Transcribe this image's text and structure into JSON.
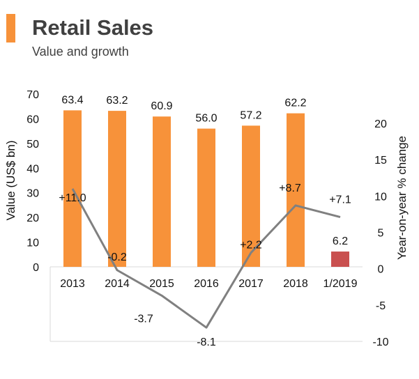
{
  "header": {
    "title": "Retail Sales",
    "subtitle": "Value and growth"
  },
  "colors": {
    "accent": "#f7923a",
    "bar": "#f7923a",
    "bar_highlight": "#c9504f",
    "line": "#808080",
    "grid": "#d9d9d9"
  },
  "chart_data": {
    "type": "bar",
    "categories": [
      "2013",
      "2014",
      "2015",
      "2016",
      "2017",
      "2018",
      "1/2019"
    ],
    "series": [
      {
        "name": "Value (US$ bn)",
        "type": "bar",
        "axis": "left",
        "values": [
          63.4,
          63.2,
          60.9,
          56.0,
          57.2,
          62.2,
          6.2
        ],
        "labels": [
          "63.4",
          "63.2",
          "60.9",
          "56.0",
          "57.2",
          "62.2",
          "6.2"
        ]
      },
      {
        "name": "Year-on-year % change",
        "type": "line",
        "axis": "right",
        "values": [
          11.0,
          -0.2,
          -3.7,
          -8.1,
          2.2,
          8.7,
          7.1
        ],
        "labels": [
          "+11.0",
          "-0.2",
          "-3.7",
          "-8.1",
          "+2.2",
          "+8.7",
          "+7.1"
        ]
      }
    ],
    "ylabel": "Value (US$ bn)",
    "ylabel_right": "Year-on-year % change",
    "ylim": [
      0,
      70
    ],
    "y_ticks": [
      "0",
      "10",
      "20",
      "30",
      "40",
      "50",
      "60",
      "70"
    ],
    "y2lim": [
      -10,
      20
    ],
    "y2_ticks": [
      "-10",
      "-5",
      "0",
      "5",
      "10",
      "15",
      "20"
    ],
    "highlight_last_bar": true,
    "grid": false
  }
}
